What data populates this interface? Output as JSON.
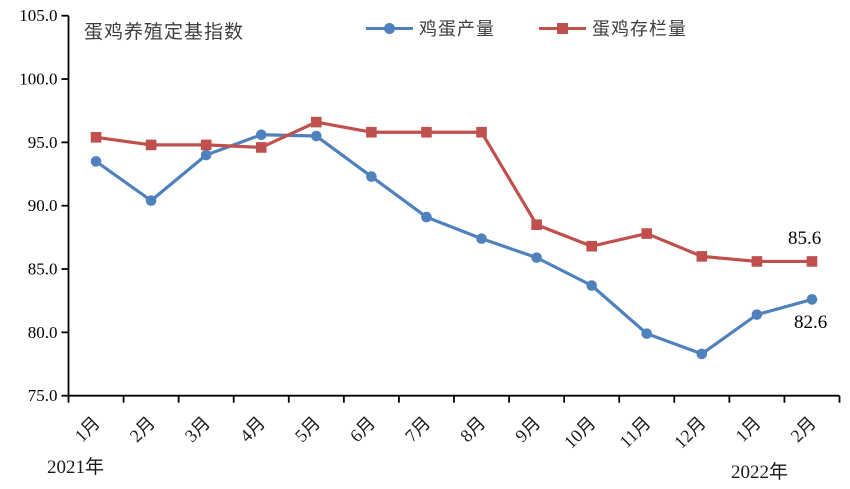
{
  "chart_data": {
    "type": "line",
    "title": "蛋鸡养殖定基指数",
    "legend_position": "top-center",
    "grid": false,
    "x_categories": [
      "1月",
      "2月",
      "3月",
      "4月",
      "5月",
      "6月",
      "7月",
      "8月",
      "9月",
      "10月",
      "11月",
      "12月",
      "1月",
      "2月"
    ],
    "x_year_labels": {
      "left": "2021年",
      "right": "2022年"
    },
    "y_axis": {
      "min": 75,
      "max": 105,
      "step": 5,
      "tick_labels": [
        "105.0",
        "100.0",
        "95.0",
        "90.0",
        "85.0",
        "80.0",
        "75.0"
      ]
    },
    "series": [
      {
        "name": "鸡蛋产量",
        "color": "#4f81bd",
        "marker": "circle",
        "values": [
          93.5,
          90.4,
          94.0,
          95.6,
          95.5,
          92.3,
          89.1,
          87.4,
          85.9,
          83.7,
          79.9,
          78.3,
          81.4,
          82.6
        ],
        "end_label": "82.6"
      },
      {
        "name": "蛋鸡存栏量",
        "color": "#c0504d",
        "marker": "square",
        "values": [
          95.4,
          94.8,
          94.8,
          94.6,
          96.6,
          95.8,
          95.8,
          95.8,
          88.5,
          86.8,
          87.8,
          86.0,
          85.6,
          85.6
        ],
        "end_label": "85.6"
      }
    ],
    "axis_color": "#000000"
  }
}
